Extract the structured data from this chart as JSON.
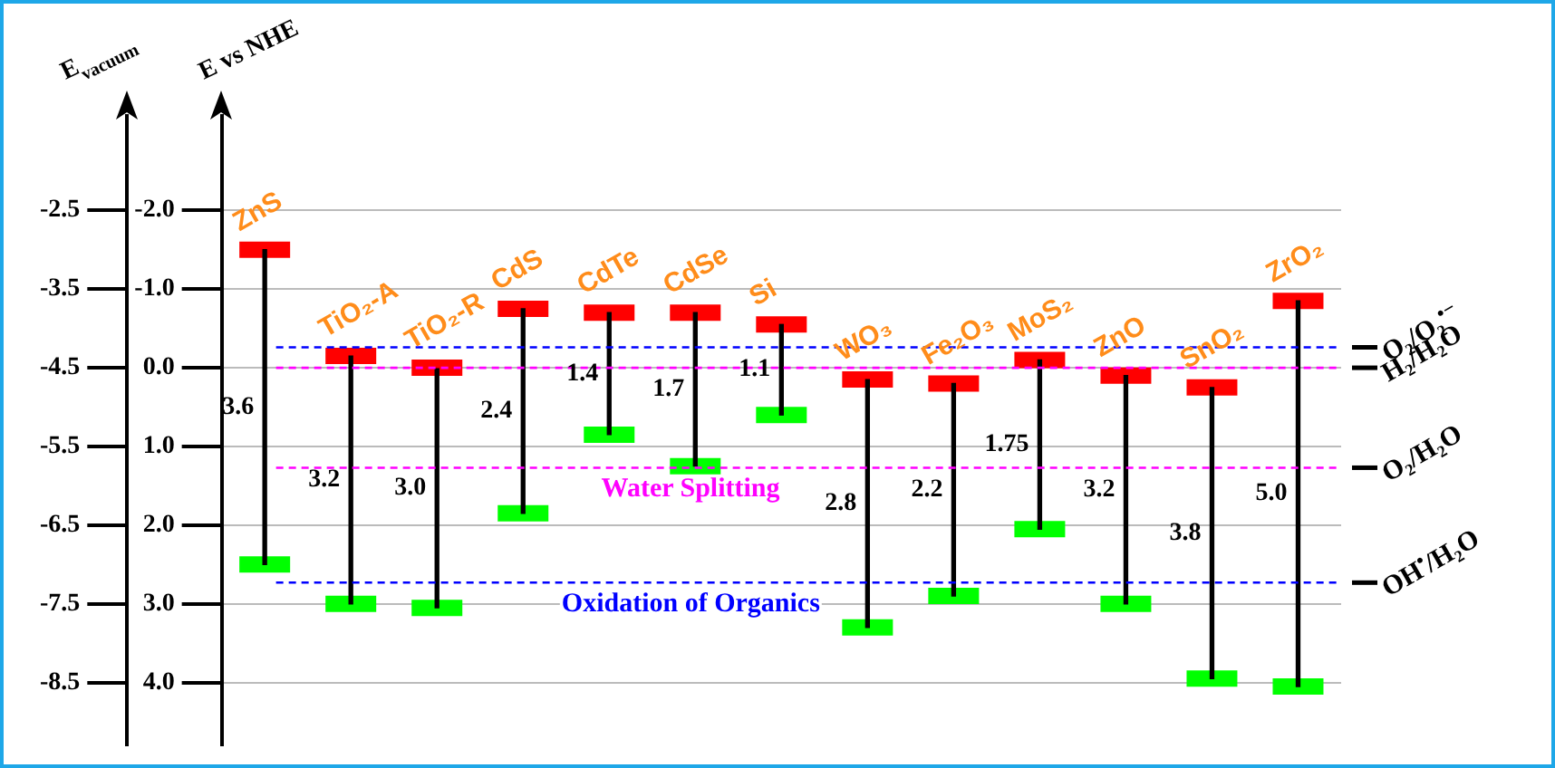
{
  "chart_data": {
    "type": "bar",
    "ylabel": "E vs NHE",
    "y2label": "E$_{vacuum}$",
    "categories": [
      "ZnS",
      "TiO₂-A",
      "TiO₂-R",
      "CdS",
      "CdTe",
      "CdSe",
      "Si",
      "WO₃",
      "Fe₂O₃",
      "MoS₂",
      "ZnO",
      "SnO₂",
      "ZrO₂"
    ],
    "series": [
      {
        "color": "#000000",
        "base": [
          -1.5,
          -0.15,
          0.0,
          -0.75,
          -0.7,
          -0.7,
          -0.55,
          0.15,
          0.2,
          -0.1,
          0.1,
          0.25,
          -0.85
        ],
        "values": [
          4.0,
          3.15,
          3.05,
          2.6,
          1.55,
          1.95,
          1.15,
          3.15,
          2.7,
          2.15,
          2.9,
          3.7,
          4.9
        ]
      },
      {
        "type": "scatter",
        "color": "#ff0000",
        "values": [
          -1.5,
          -0.15,
          0.0,
          -0.75,
          -0.7,
          -0.7,
          -0.55,
          0.15,
          0.2,
          -0.1,
          0.1,
          0.25,
          -0.85
        ]
      },
      {
        "type": "scatter",
        "color": "#00ff00",
        "values": [
          2.5,
          3.0,
          3.05,
          1.85,
          0.85,
          1.25,
          0.6,
          3.3,
          2.9,
          2.05,
          3.0,
          3.95,
          4.05
        ]
      }
    ],
    "ylim": [
      4.8,
      -3.2
    ],
    "yticks": [
      {
        "value": -2,
        "label": "-2.0"
      },
      {
        "value": -1,
        "label": "-1.0"
      },
      {
        "value": 0,
        "label": "0.0"
      },
      {
        "value": 1,
        "label": "1.0"
      },
      {
        "value": 2,
        "label": "2.0"
      },
      {
        "value": 3,
        "label": "3.0"
      },
      {
        "value": 4,
        "label": "4.0"
      }
    ],
    "y2lim": [
      -9.3,
      -1.3
    ],
    "y2ticks": [
      -2.5,
      -3.5,
      -4.5,
      -5.5,
      -6.5,
      -7.5,
      -8.5
    ],
    "grid": "y",
    "ref_lines": [
      {
        "axis": "y",
        "value": -0.26,
        "label": "O₂/O₂$^{•−}$",
        "color": "#0000ff",
        "line_style": "dashed"
      },
      {
        "axis": "y",
        "value": 0,
        "label": "H₂/H₂O",
        "color": "#ff00ff",
        "line_style": "dashed"
      },
      {
        "axis": "y",
        "value": 1.27,
        "label": "O₂/H₂O",
        "color": "#ff00ff",
        "line_style": "dashed"
      },
      {
        "axis": "y",
        "value": 2.73,
        "label": "OH$^{•}$/H₂O",
        "color": "#0000ff",
        "line_style": "dashed"
      }
    ],
    "annotations": [
      "3.6",
      "3.2",
      "3.0",
      "2.4",
      "1.4",
      "1.7",
      "1.1",
      "2.8",
      "2.2",
      "1.75",
      "3.2",
      "3.8",
      "5.0",
      {
        "text": "Water Splitting",
        "y": 1.27
      },
      {
        "text": "Oxidation of Organics",
        "y": 2.73
      }
    ]
  }
}
